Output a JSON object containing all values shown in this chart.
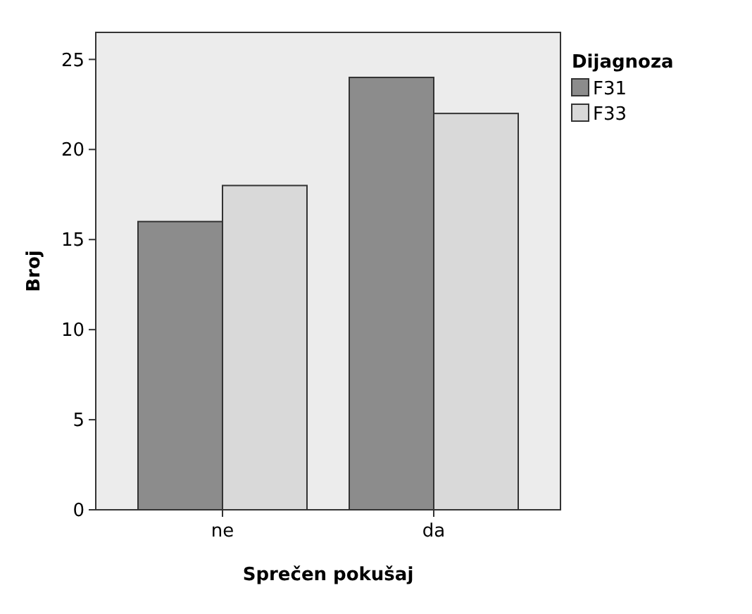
{
  "chart_data": {
    "type": "bar",
    "xlabel": "Sprečen pokušaj",
    "ylabel": "Broj",
    "legend_title": "Dijagnoza",
    "legend": "right",
    "categories": [
      "ne",
      "da"
    ],
    "series": [
      {
        "name": "F31",
        "color": "#8c8c8c",
        "values": [
          16,
          24
        ]
      },
      {
        "name": "F33",
        "color": "#d9d9d9",
        "values": [
          18,
          22
        ]
      }
    ],
    "ylim": [
      0,
      26.5
    ],
    "yticks": [
      0,
      5,
      10,
      15,
      20,
      25
    ],
    "grid": false
  }
}
